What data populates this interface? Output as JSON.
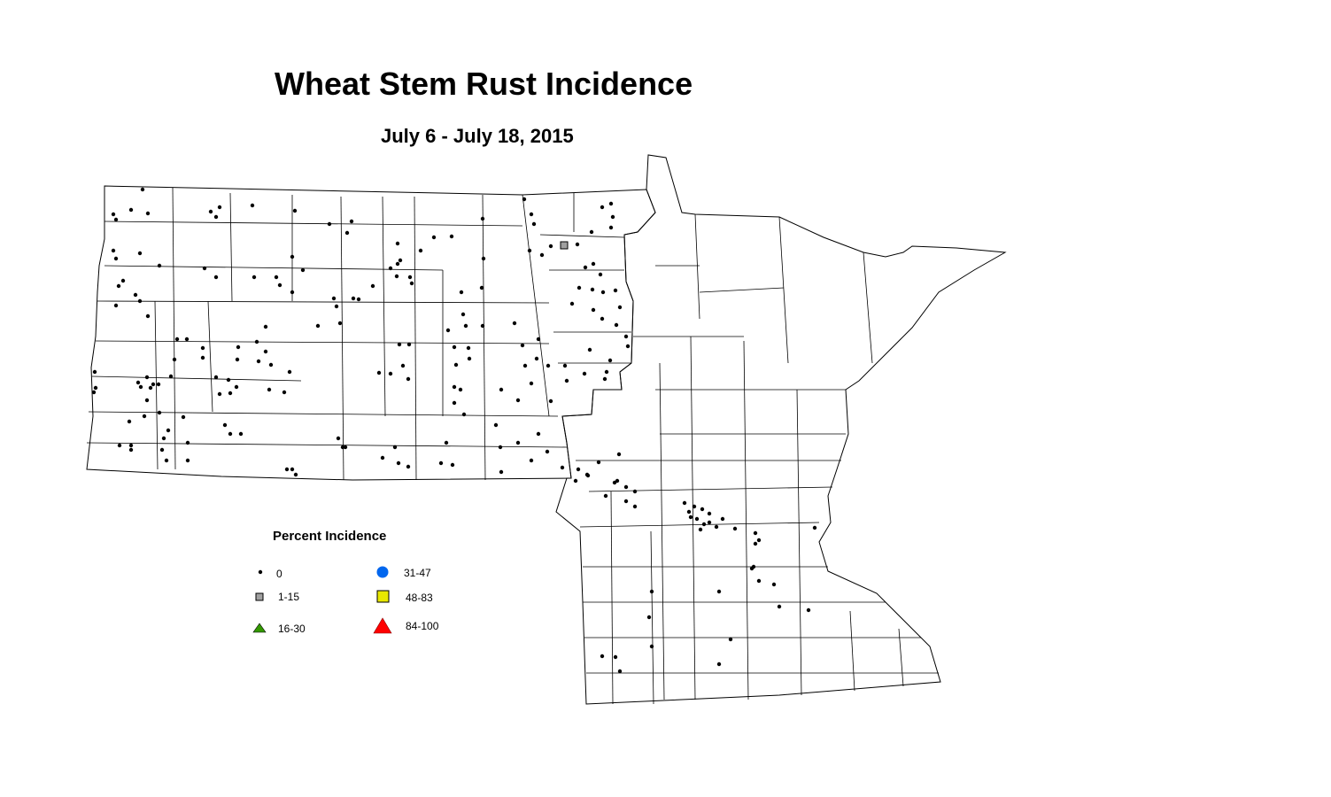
{
  "title": "Wheat Stem Rust Incidence",
  "subtitle": "July 6 - July 18, 2015",
  "legend": {
    "title": "Percent Incidence",
    "items": [
      {
        "label": "0",
        "symbol": "small-dot",
        "color": "#000000"
      },
      {
        "label": "1-15",
        "symbol": "square",
        "color": "#a0a0a0"
      },
      {
        "label": "16-30",
        "symbol": "triangle",
        "color": "#339900"
      },
      {
        "label": "31-47",
        "symbol": "circle",
        "color": "#0066ee"
      },
      {
        "label": "48-83",
        "symbol": "square",
        "color": "#e8e800"
      },
      {
        "label": "84-100",
        "symbol": "triangle",
        "color": "#ff0000"
      }
    ]
  },
  "map": {
    "regions": [
      "North Dakota counties",
      "Minnesota counties"
    ],
    "observations_by_category": {
      "0": "most sites",
      "1-15": 1
    }
  }
}
